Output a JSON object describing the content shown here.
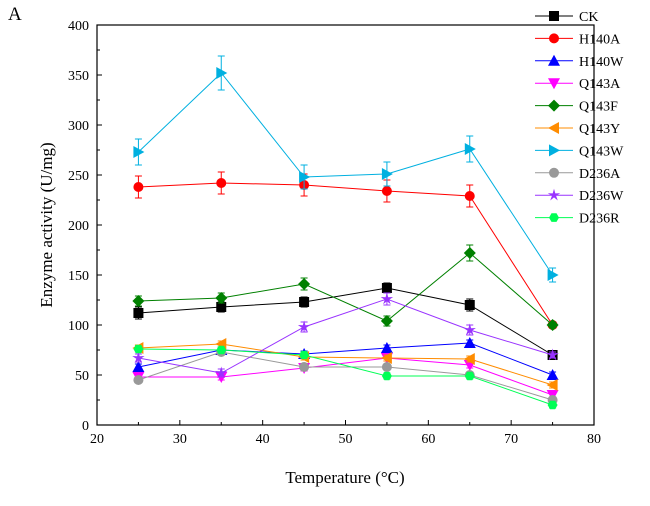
{
  "panel_label": "A",
  "chart_data": {
    "type": "line",
    "title": "",
    "xlabel": "Temperature (°C)",
    "ylabel": "Enzyme activity (U/mg)",
    "xlim": [
      20,
      80
    ],
    "ylim": [
      0,
      400
    ],
    "x_ticks": [
      20,
      30,
      40,
      50,
      60,
      70,
      80
    ],
    "y_ticks": [
      0,
      50,
      100,
      150,
      200,
      250,
      300,
      350,
      400
    ],
    "grid": false,
    "legend_position": "top-right",
    "x": [
      25,
      35,
      45,
      55,
      65,
      75
    ],
    "series": [
      {
        "name": "CK",
        "color": "#000000",
        "marker": "square",
        "values": [
          112,
          118,
          123,
          137,
          120,
          70
        ],
        "errors": [
          6,
          5,
          5,
          5,
          6,
          3
        ]
      },
      {
        "name": "H140A",
        "color": "#ff0000",
        "marker": "circle",
        "values": [
          238,
          242,
          240,
          234,
          229,
          100
        ],
        "errors": [
          11,
          11,
          11,
          11,
          11,
          3
        ]
      },
      {
        "name": "H140W",
        "color": "#0000ff",
        "marker": "triangle-up",
        "values": [
          58,
          75,
          71,
          77,
          82,
          50
        ],
        "errors": [
          3,
          3,
          3,
          3,
          3,
          3
        ]
      },
      {
        "name": "Q143A",
        "color": "#ff00ff",
        "marker": "triangle-down",
        "values": [
          48,
          48,
          57,
          67,
          60,
          30
        ],
        "errors": [
          3,
          3,
          3,
          3,
          3,
          3
        ]
      },
      {
        "name": "Q143F",
        "color": "#008000",
        "marker": "diamond",
        "values": [
          124,
          127,
          141,
          104,
          172,
          100
        ],
        "errors": [
          5,
          5,
          6,
          5,
          8,
          3
        ]
      },
      {
        "name": "Q143Y",
        "color": "#ff8c00",
        "marker": "triangle-left",
        "values": [
          77,
          81,
          68,
          67,
          66,
          40
        ],
        "errors": [
          3,
          3,
          3,
          3,
          3,
          3
        ]
      },
      {
        "name": "Q143W",
        "color": "#00b0e0",
        "marker": "triangle-right",
        "values": [
          273,
          352,
          248,
          251,
          276,
          150
        ],
        "errors": [
          13,
          17,
          12,
          12,
          13,
          7
        ]
      },
      {
        "name": "D236A",
        "color": "#999999",
        "marker": "circle",
        "values": [
          45,
          73,
          58,
          58,
          50,
          25
        ],
        "errors": [
          3,
          3,
          3,
          3,
          3,
          3
        ]
      },
      {
        "name": "D236W",
        "color": "#9933ff",
        "marker": "star",
        "values": [
          67,
          52,
          98,
          126,
          95,
          70
        ],
        "errors": [
          4,
          4,
          5,
          6,
          5,
          3
        ]
      },
      {
        "name": "D236R",
        "color": "#00ff55",
        "marker": "hexagon",
        "values": [
          76,
          75,
          70,
          49,
          49,
          20
        ],
        "errors": [
          3,
          3,
          3,
          3,
          3,
          3
        ]
      }
    ]
  }
}
